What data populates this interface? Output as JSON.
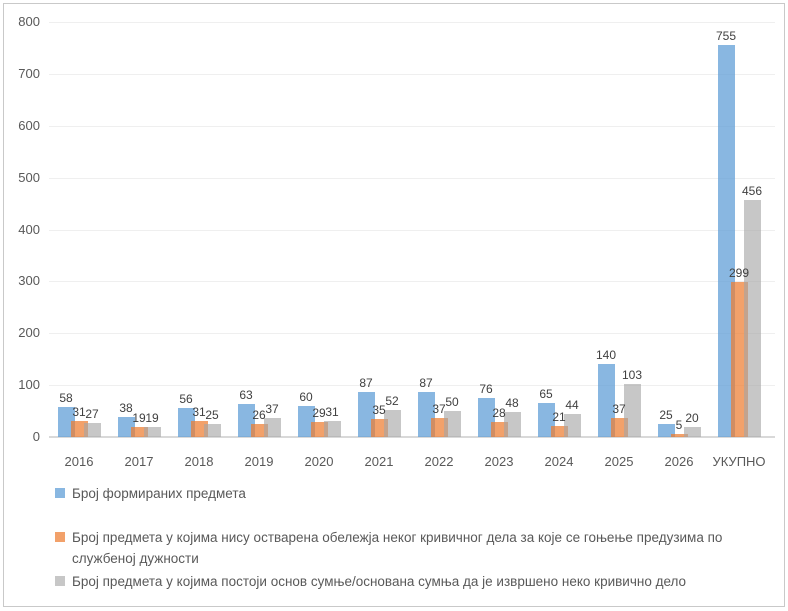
{
  "chart_data": {
    "type": "bar",
    "title": "",
    "xlabel": "",
    "ylabel": "",
    "categories": [
      "2016",
      "2017",
      "2018",
      "2019",
      "2020",
      "2021",
      "2022",
      "2023",
      "2024",
      "2025",
      "2026",
      "УКУПНО"
    ],
    "series": [
      {
        "name": "Број формираних предмета",
        "color": "#5B9BD5",
        "opacity": 0.72,
        "values": [
          58,
          38,
          56,
          63,
          60,
          87,
          87,
          76,
          65,
          140,
          25,
          755
        ]
      },
      {
        "name": "Број предмета у којима нису остварена обележја неког кривичног дела за које се гоњење предузима по службеној дужности",
        "color": "#ED7D31",
        "opacity": 0.72,
        "values": [
          31,
          19,
          31,
          26,
          29,
          35,
          37,
          28,
          21,
          37,
          5,
          299
        ]
      },
      {
        "name": "Број предмета у којима постоји основ сумње/основана сумња да је извршено неко кривично дело",
        "color": "#A5A5A5",
        "opacity": 0.62,
        "values": [
          27,
          19,
          25,
          37,
          31,
          52,
          50,
          48,
          44,
          103,
          20,
          456
        ]
      }
    ],
    "ylim": [
      0,
      800
    ],
    "yticks": [
      0,
      100,
      200,
      300,
      400,
      500,
      600,
      700,
      800
    ],
    "grid": true,
    "legend_position": "bottom",
    "colors": {
      "gridline": "#EFEFEF",
      "axis_line": "#D9D9D9",
      "tick_label": "#595959",
      "value_label": "#404040",
      "legend_text": "#595959",
      "border": "#C9C9C9",
      "background": "#FFFFFF"
    }
  }
}
